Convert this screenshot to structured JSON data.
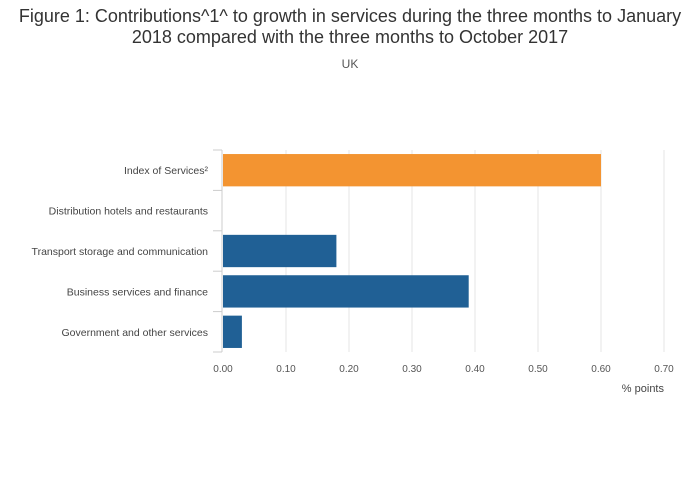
{
  "chart_data": {
    "type": "bar",
    "orientation": "horizontal",
    "title": "Figure 1: Contributions^1^ to growth in services during the three months to January 2018 compared with the three months to October 2017",
    "subtitle": "UK",
    "xlabel": "% points",
    "ylabel": "",
    "xlim": [
      0,
      0.7
    ],
    "x_ticks": [
      "0.00",
      "0.10",
      "0.20",
      "0.30",
      "0.40",
      "0.50",
      "0.60",
      "0.70"
    ],
    "grid": true,
    "categories": [
      "Index of Services²",
      "Distribution hotels and restaurants",
      "Transport storage and communication",
      "Business services and finance",
      "Government and other services"
    ],
    "values": [
      0.6,
      0.0,
      0.18,
      0.39,
      0.03
    ],
    "colors": [
      "#f39431",
      "#206095",
      "#206095",
      "#206095",
      "#206095"
    ]
  }
}
